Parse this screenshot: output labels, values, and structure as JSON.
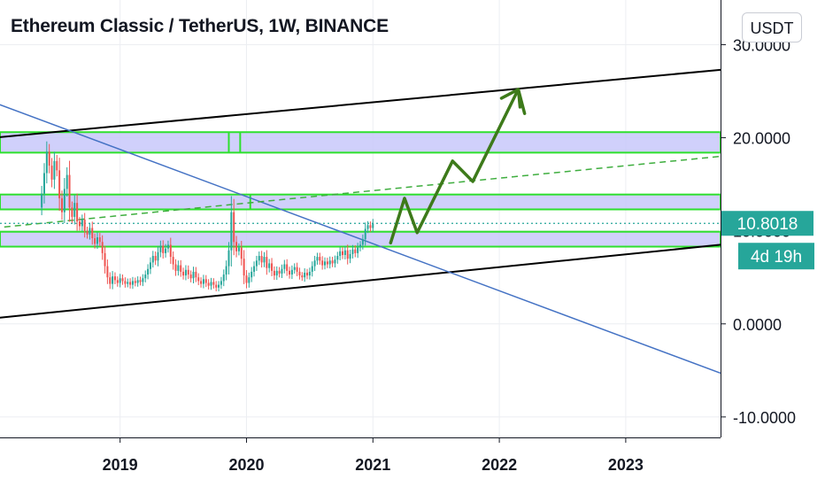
{
  "header": {
    "title": "Ethereum Classic / TetherUS, 1W, BINANCE",
    "currency_button": "USDT"
  },
  "chart_data": {
    "type": "candlestick",
    "symbol": "Ethereum Classic / TetherUS",
    "interval": "1W",
    "exchange": "BINANCE",
    "y_ticks": [
      "30.0000",
      "20.0000",
      "10.0000",
      "0.0000",
      "-10.0000"
    ],
    "y_tick_values": [
      30,
      20,
      10,
      0,
      -10
    ],
    "x_ticks": [
      "2019",
      "2020",
      "2021",
      "2022",
      "2023"
    ],
    "x_tick_values": [
      2019,
      2020,
      2021,
      2022,
      2023
    ],
    "ylim": [
      -12.2,
      34.8
    ],
    "xlim": [
      2018.05,
      2023.75
    ],
    "last_price_label": "10.8018",
    "last_price": 10.8018,
    "countdown_label": "4d 19h",
    "colors": {
      "up": "#26a69a",
      "down": "#ef5350",
      "zone_fill": "#c8c8fa",
      "zone_border": "#2ee02e",
      "trend_line": "#000000",
      "descending_line": "#4472c4",
      "projection": "#3d7a1a",
      "price_label_bg": "#26a69a",
      "grid": "#eceef2"
    },
    "price_path": [
      [
        2018.36,
        12.5
      ],
      [
        2018.38,
        14.0
      ],
      [
        2018.4,
        16.2
      ],
      [
        2018.42,
        18.5
      ],
      [
        2018.44,
        17.0
      ],
      [
        2018.46,
        15.5
      ],
      [
        2018.48,
        17.5
      ],
      [
        2018.5,
        16.5
      ],
      [
        2018.52,
        13.5
      ],
      [
        2018.54,
        12.0
      ],
      [
        2018.56,
        14.5
      ],
      [
        2018.58,
        16.0
      ],
      [
        2018.6,
        12.5
      ],
      [
        2018.62,
        11.5
      ],
      [
        2018.64,
        13.0
      ],
      [
        2018.66,
        11.0
      ],
      [
        2018.68,
        10.5
      ],
      [
        2018.7,
        11.2
      ],
      [
        2018.72,
        10.0
      ],
      [
        2018.74,
        9.6
      ],
      [
        2018.76,
        10.3
      ],
      [
        2018.78,
        9.2
      ],
      [
        2018.8,
        8.6
      ],
      [
        2018.82,
        9.3
      ],
      [
        2018.84,
        8.8
      ],
      [
        2018.86,
        7.6
      ],
      [
        2018.88,
        6.2
      ],
      [
        2018.9,
        5.0
      ],
      [
        2018.92,
        4.3
      ],
      [
        2018.94,
        5.1
      ],
      [
        2018.96,
        4.7
      ],
      [
        2018.98,
        4.4
      ],
      [
        2019.0,
        4.9
      ],
      [
        2019.02,
        4.6
      ],
      [
        2019.04,
        4.3
      ],
      [
        2019.06,
        4.5
      ],
      [
        2019.08,
        4.2
      ],
      [
        2019.1,
        4.6
      ],
      [
        2019.12,
        4.4
      ],
      [
        2019.14,
        4.7
      ],
      [
        2019.16,
        4.5
      ],
      [
        2019.18,
        4.9
      ],
      [
        2019.2,
        5.3
      ],
      [
        2019.22,
        5.9
      ],
      [
        2019.24,
        6.6
      ],
      [
        2019.26,
        7.3
      ],
      [
        2019.28,
        6.8
      ],
      [
        2019.3,
        7.7
      ],
      [
        2019.32,
        8.4
      ],
      [
        2019.34,
        7.6
      ],
      [
        2019.36,
        8.1
      ],
      [
        2019.38,
        8.5
      ],
      [
        2019.4,
        7.2
      ],
      [
        2019.42,
        6.4
      ],
      [
        2019.44,
        5.7
      ],
      [
        2019.46,
        6.3
      ],
      [
        2019.48,
        5.6
      ],
      [
        2019.5,
        5.2
      ],
      [
        2019.52,
        5.8
      ],
      [
        2019.54,
        5.3
      ],
      [
        2019.56,
        4.9
      ],
      [
        2019.58,
        5.6
      ],
      [
        2019.6,
        5.0
      ],
      [
        2019.62,
        4.6
      ],
      [
        2019.64,
        4.3
      ],
      [
        2019.66,
        4.8
      ],
      [
        2019.68,
        4.4
      ],
      [
        2019.7,
        4.1
      ],
      [
        2019.72,
        4.5
      ],
      [
        2019.74,
        4.2
      ],
      [
        2019.76,
        3.9
      ],
      [
        2019.78,
        4.2
      ],
      [
        2019.8,
        4.6
      ],
      [
        2019.82,
        5.3
      ],
      [
        2019.84,
        6.2
      ],
      [
        2019.86,
        7.9
      ],
      [
        2019.88,
        12.0
      ],
      [
        2019.9,
        8.8
      ],
      [
        2019.92,
        7.8
      ],
      [
        2019.94,
        8.2
      ],
      [
        2019.96,
        7.0
      ],
      [
        2019.98,
        5.2
      ],
      [
        2020.0,
        4.4
      ],
      [
        2020.02,
        5.0
      ],
      [
        2020.04,
        5.6
      ],
      [
        2020.06,
        6.2
      ],
      [
        2020.08,
        6.8
      ],
      [
        2020.1,
        7.3
      ],
      [
        2020.12,
        6.6
      ],
      [
        2020.14,
        7.2
      ],
      [
        2020.16,
        6.0
      ],
      [
        2020.18,
        6.5
      ],
      [
        2020.2,
        5.7
      ],
      [
        2020.22,
        5.2
      ],
      [
        2020.24,
        5.7
      ],
      [
        2020.26,
        5.4
      ],
      [
        2020.28,
        5.9
      ],
      [
        2020.3,
        6.4
      ],
      [
        2020.32,
        5.7
      ],
      [
        2020.34,
        5.3
      ],
      [
        2020.36,
        5.8
      ],
      [
        2020.38,
        6.1
      ],
      [
        2020.4,
        5.6
      ],
      [
        2020.42,
        5.2
      ],
      [
        2020.44,
        5.0
      ],
      [
        2020.46,
        5.5
      ],
      [
        2020.48,
        5.2
      ],
      [
        2020.5,
        5.6
      ],
      [
        2020.52,
        6.2
      ],
      [
        2020.54,
        6.8
      ],
      [
        2020.56,
        7.2
      ],
      [
        2020.58,
        6.8
      ],
      [
        2020.6,
        6.3
      ],
      [
        2020.62,
        6.7
      ],
      [
        2020.64,
        6.4
      ],
      [
        2020.66,
        6.8
      ],
      [
        2020.68,
        6.5
      ],
      [
        2020.7,
        6.9
      ],
      [
        2020.72,
        7.3
      ],
      [
        2020.74,
        7.8
      ],
      [
        2020.76,
        7.4
      ],
      [
        2020.78,
        7.9
      ],
      [
        2020.8,
        7.0
      ],
      [
        2020.82,
        7.5
      ],
      [
        2020.84,
        8.0
      ],
      [
        2020.86,
        7.6
      ],
      [
        2020.88,
        8.2
      ],
      [
        2020.9,
        8.5
      ],
      [
        2020.92,
        9.1
      ],
      [
        2020.94,
        10.2
      ],
      [
        2020.96,
        10.6
      ],
      [
        2020.98,
        10.3
      ],
      [
        2021.0,
        10.8018
      ]
    ],
    "zones": [
      {
        "low": 18.4,
        "high": 20.6
      },
      {
        "low": 12.3,
        "high": 13.9
      },
      {
        "low": 8.3,
        "high": 9.9
      }
    ],
    "zone_markers": [
      {
        "x": 2019.86,
        "low": 18.4,
        "high": 20.6
      },
      {
        "x": 2019.95,
        "low": 18.4,
        "high": 20.6
      },
      {
        "x": 2020.03,
        "low": 12.3,
        "high": 13.9
      }
    ],
    "upper_channel": [
      [
        2018.0,
        20.0
      ],
      [
        2023.75,
        27.3
      ]
    ],
    "lower_channel": [
      [
        2018.0,
        0.6
      ],
      [
        2023.75,
        8.5
      ]
    ],
    "descending_trend": [
      [
        2018.0,
        23.8
      ],
      [
        2023.75,
        -5.3
      ]
    ],
    "dashed_trend": [
      [
        2018.0,
        10.3
      ],
      [
        2023.75,
        18.0
      ]
    ],
    "dotted_level": 10.8018,
    "projection_path": [
      [
        2021.14,
        8.7
      ],
      [
        2021.25,
        13.5
      ],
      [
        2021.35,
        9.8
      ],
      [
        2021.63,
        17.5
      ],
      [
        2021.79,
        15.3
      ],
      [
        2022.15,
        25.2
      ],
      [
        2022.2,
        22.6
      ]
    ]
  }
}
